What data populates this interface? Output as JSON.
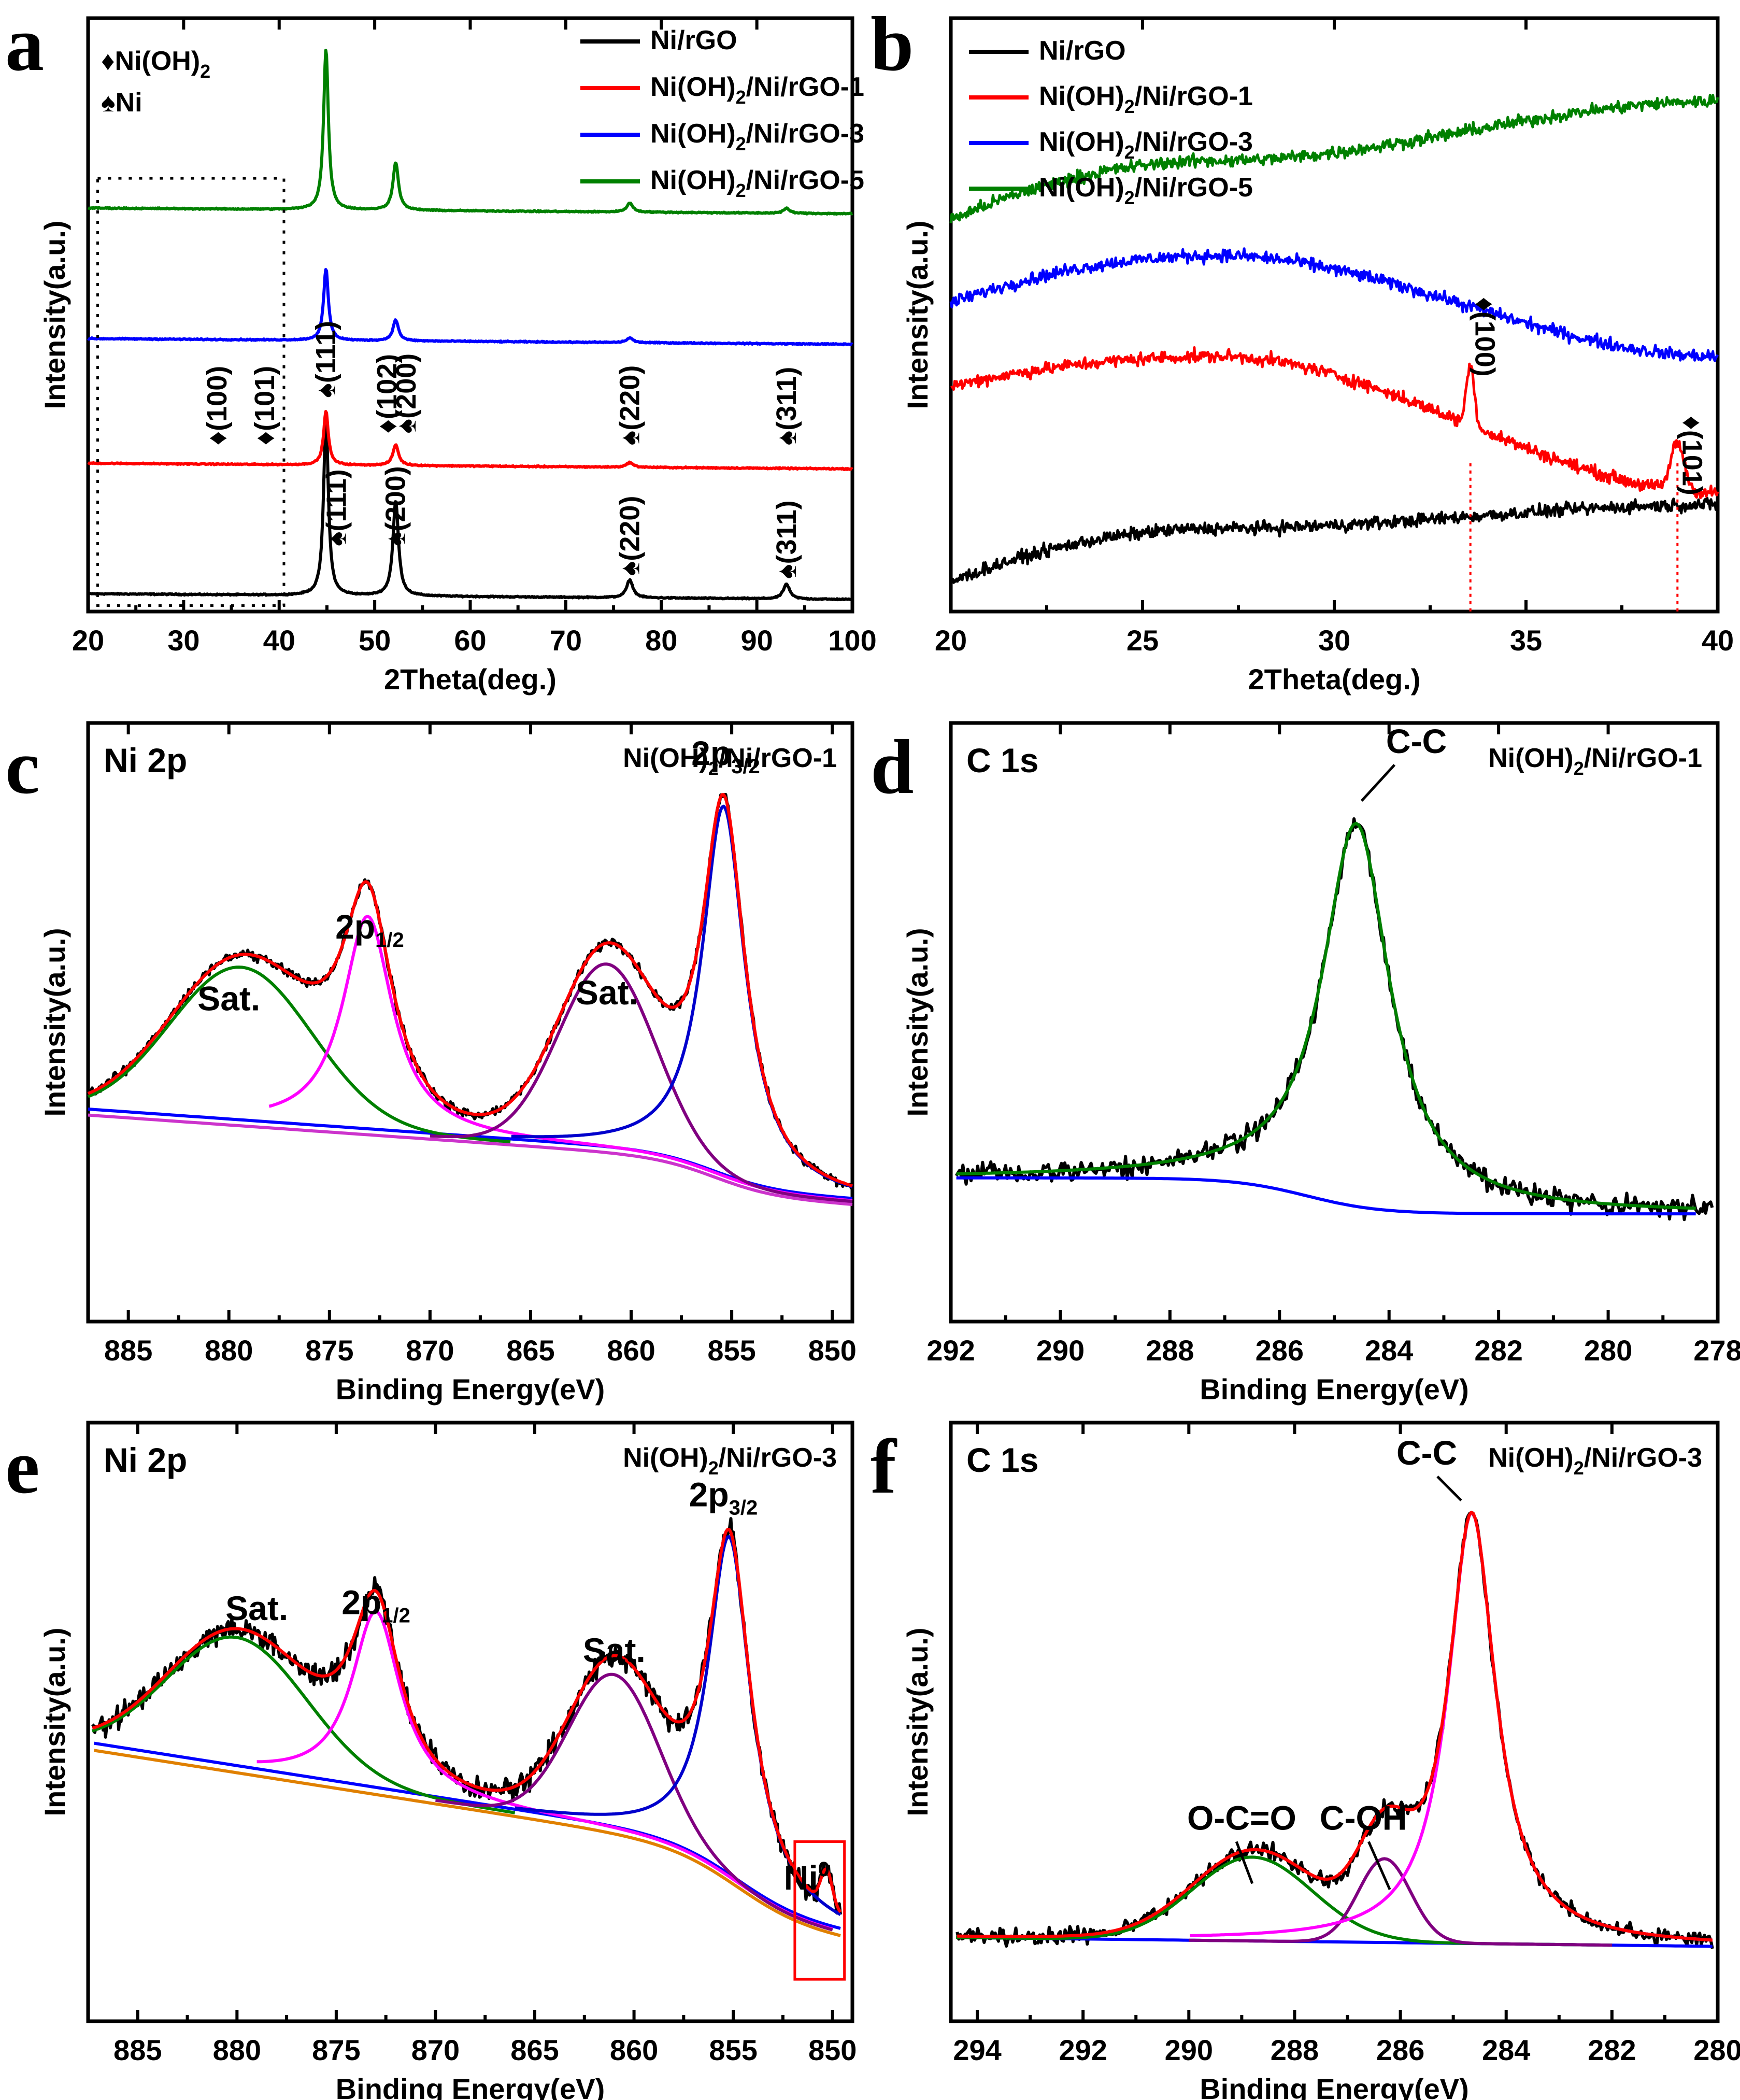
{
  "chart_data": [
    {
      "panel": "a",
      "type": "line",
      "xlabel": "2Theta(deg.)",
      "ylabel": "Intensity(a.u.)",
      "xlim": [
        20,
        100
      ],
      "xticks": [
        20,
        30,
        40,
        50,
        60,
        70,
        80,
        90,
        100
      ],
      "ylim": [
        0,
        100
      ],
      "yticks": false,
      "legend_position": "top-right",
      "marker_legend": [
        {
          "symbol": "♦",
          "label": "Ni(OH)",
          "sub": "2"
        },
        {
          "symbol": "♠",
          "label": "Ni",
          "sub": ""
        }
      ],
      "series": [
        {
          "name": "Ni/rGO",
          "color": "#000000",
          "baseline": 3,
          "peaks": [
            [
              44.9,
              30,
              0.3
            ],
            [
              52.2,
              16,
              0.35
            ],
            [
              76.7,
              3,
              0.4
            ],
            [
              93.1,
              2.5,
              0.4
            ]
          ]
        },
        {
          "name": "Ni(OH)2/Ni/rGO-1",
          "color": "#ff0000",
          "baseline": 25,
          "peaks": [
            [
              44.9,
              9,
              0.3
            ],
            [
              52.2,
              3.5,
              0.35
            ],
            [
              76.7,
              0.8,
              0.4
            ]
          ]
        },
        {
          "name": "Ni(OH)2/Ni/rGO-3",
          "color": "#0000ff",
          "baseline": 46,
          "peaks": [
            [
              44.9,
              12,
              0.3
            ],
            [
              52.2,
              3.5,
              0.35
            ],
            [
              76.7,
              0.8,
              0.4
            ]
          ]
        },
        {
          "name": "Ni(OH)2/Ni/rGO-5",
          "color": "#008000",
          "baseline": 68,
          "peaks": [
            [
              44.9,
              27,
              0.3
            ],
            [
              52.2,
              8,
              0.35
            ],
            [
              76.7,
              1.5,
              0.4
            ],
            [
              93.1,
              0.8,
              0.4
            ]
          ]
        }
      ],
      "annotations": [
        {
          "text": "♦(100)",
          "x": 33.5,
          "y": 28
        },
        {
          "text": "♦(101)",
          "x": 38.5,
          "y": 28
        },
        {
          "text": "♠(111)",
          "x": 44.9,
          "y": 36
        },
        {
          "text": "♦(102)",
          "x": 51.3,
          "y": 30
        },
        {
          "text": "♠(200)",
          "x": 53.3,
          "y": 30
        },
        {
          "text": "♠(220)",
          "x": 76.7,
          "y": 28
        },
        {
          "text": "♠(311)",
          "x": 93.1,
          "y": 28
        },
        {
          "text": "♠(111)",
          "x": 46.0,
          "y": 11
        },
        {
          "text": "♠(200)",
          "x": 52.2,
          "y": 11
        },
        {
          "text": "♠(220)",
          "x": 76.7,
          "y": 6
        },
        {
          "text": "♠(311)",
          "x": 93.1,
          "y": 5.5
        }
      ],
      "zoom_box": {
        "x": [
          21,
          40.5
        ],
        "y": [
          1,
          73
        ]
      }
    },
    {
      "panel": "b",
      "type": "line",
      "xlabel": "2Theta(deg.)",
      "ylabel": "Intensity(a.u.)",
      "xlim": [
        20,
        40
      ],
      "xticks": [
        20,
        25,
        30,
        35,
        40
      ],
      "ylim": [
        0,
        100
      ],
      "yticks": false,
      "legend_position": "top-left",
      "series": [
        {
          "name": "Ni/rGO",
          "color": "#000000",
          "start": 5,
          "mid": 14,
          "end": 18,
          "peaks": []
        },
        {
          "name": "Ni(OH)2/Ni/rGO-1",
          "color": "#ff0000",
          "start": 38,
          "mid": 43,
          "end": 20,
          "peaks": [
            [
              33.55,
              10,
              0.15
            ],
            [
              38.95,
              8,
              0.25
            ]
          ]
        },
        {
          "name": "Ni(OH)2/Ni/rGO-3",
          "color": "#0000ff",
          "start": 52,
          "mid": 60,
          "end": 43,
          "peaks": []
        },
        {
          "name": "Ni(OH)2/Ni/rGO-5",
          "color": "#008000",
          "start": 66,
          "mid": 76,
          "end": 86,
          "peaks": []
        }
      ],
      "annotations": [
        {
          "text": "♦(100)",
          "x": 33.55,
          "y": 53
        },
        {
          "text": "♦(101)",
          "x": 38.95,
          "y": 33
        }
      ],
      "reference_lines_x": [
        33.55,
        38.95
      ]
    },
    {
      "panel": "c",
      "type": "line",
      "title": "Ni 2p",
      "sample": "Ni(OH)2/Ni/rGO-1",
      "xlabel": "Binding Energy(eV)",
      "ylabel": "Intensity(a.u.)",
      "xlim": [
        887,
        849
      ],
      "xticks": [
        885,
        880,
        875,
        870,
        865,
        860,
        855,
        850
      ],
      "ylim": [
        0,
        100
      ],
      "yticks": false,
      "labels": [
        {
          "text": "Sat.",
          "x": 880,
          "y": 52
        },
        {
          "text": "2p",
          "sub": "1/2",
          "x": 873,
          "y": 64
        },
        {
          "text": "Sat.",
          "x": 861.2,
          "y": 53
        },
        {
          "text": "2p",
          "sub": "3/2",
          "x": 855.3,
          "y": 93
        }
      ]
    },
    {
      "panel": "d",
      "type": "line",
      "title": "C 1s",
      "sample": "Ni(OH)2/Ni/rGO-1",
      "xlabel": "Binding Energy(eV)",
      "ylabel": "Intensity(a.u.)",
      "xlim": [
        292,
        278
      ],
      "xticks": [
        292,
        290,
        288,
        286,
        284,
        282,
        280,
        278
      ],
      "ylim": [
        0,
        100
      ],
      "yticks": false,
      "labels": [
        {
          "text": "C-C",
          "x": 283.5,
          "y": 95
        }
      ]
    },
    {
      "panel": "e",
      "type": "line",
      "title": "Ni 2p",
      "sample": "Ni(OH)2/Ni/rGO-3",
      "xlabel": "Binding Energy(eV)",
      "ylabel": "Intensity(a.u.)",
      "xlim": [
        887.5,
        849
      ],
      "xticks": [
        885,
        880,
        875,
        870,
        865,
        860,
        855,
        850
      ],
      "ylim": [
        0,
        100
      ],
      "yticks": false,
      "labels": [
        {
          "text": "Sat.",
          "x": 879,
          "y": 67
        },
        {
          "text": "2p",
          "sub": "1/2",
          "x": 873,
          "y": 68
        },
        {
          "text": "Sat.",
          "x": 861,
          "y": 60
        },
        {
          "text": "2p",
          "sub": "3/2",
          "x": 855.5,
          "y": 86
        },
        {
          "text": "Ni",
          "sup": "0",
          "x": 851.3,
          "y": 22
        }
      ]
    },
    {
      "panel": "f",
      "type": "line",
      "title": "C 1s",
      "sample": "Ni(OH)2/Ni/rGO-3",
      "xlabel": "Binding Energy(eV)",
      "ylabel": "Intensity(a.u.)",
      "xlim": [
        294.5,
        280
      ],
      "xticks": [
        294,
        292,
        290,
        288,
        286,
        284,
        282,
        280
      ],
      "ylim": [
        0,
        100
      ],
      "yticks": false,
      "labels": [
        {
          "text": "O-C=O",
          "x": 289,
          "y": 32
        },
        {
          "text": "C-OH",
          "x": 286.7,
          "y": 32
        },
        {
          "text": "C-C",
          "x": 285.5,
          "y": 93
        }
      ]
    }
  ]
}
